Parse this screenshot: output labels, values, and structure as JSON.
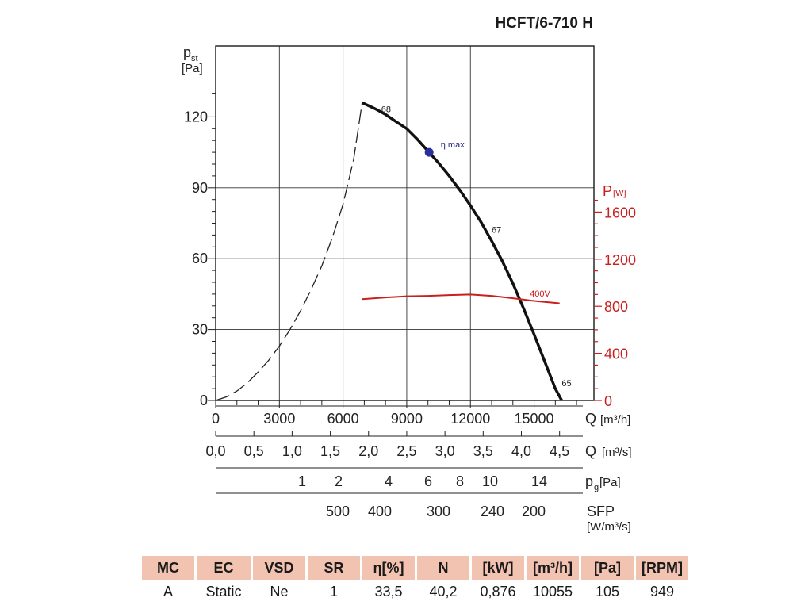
{
  "chart_data": {
    "type": "line",
    "title": "HCFT/6-710 H",
    "ylabel": "p",
    "ylabel_sub": "st",
    "ylabel_unit": "[Pa]",
    "xlabel": "Q",
    "xlabel_unit": "[m³/h]",
    "xlim": [
      0,
      17000
    ],
    "ylim": [
      0,
      135
    ],
    "x_ticks": [
      0,
      3000,
      6000,
      9000,
      12000,
      15000
    ],
    "y_ticks": [
      0,
      30,
      60,
      90,
      120
    ],
    "y2_label": "P",
    "y2_unit": "[W]",
    "y2_ticks": [
      0,
      400,
      800,
      1200,
      1600
    ],
    "series": [
      {
        "name": "pressure curve",
        "style": "solid",
        "x": [
          6900,
          7500,
          8000,
          8500,
          9000,
          9500,
          10000,
          10500,
          11000,
          11500,
          12000,
          12500,
          13000,
          13500,
          14000,
          14500,
          15000,
          15500,
          16000,
          16300
        ],
        "y": [
          126,
          123.5,
          121,
          118,
          115,
          110.5,
          105.5,
          100.5,
          95,
          89,
          82.5,
          75.5,
          67.5,
          59,
          49.5,
          39,
          28,
          16.5,
          5,
          0
        ]
      },
      {
        "name": "unstable region",
        "style": "dashed",
        "x": [
          0,
          500,
          1000,
          1500,
          2000,
          2500,
          3000,
          3500,
          4000,
          4500,
          5000,
          5500,
          6000,
          6500,
          6900
        ],
        "y": [
          0,
          1.5,
          4,
          7.5,
          12,
          17,
          23,
          30,
          38,
          47,
          57,
          69,
          83,
          102,
          126
        ]
      },
      {
        "name": "400V",
        "style": "red",
        "axis": "y2",
        "x": [
          6900,
          8000,
          9000,
          10000,
          11000,
          12000,
          13000,
          14000,
          15000,
          16200
        ],
        "y": [
          860,
          875,
          885,
          888,
          895,
          900,
          888,
          868,
          845,
          825
        ]
      }
    ],
    "annotations": [
      {
        "text": "68",
        "x": 7800,
        "y": 122
      },
      {
        "text": "67",
        "x": 13000,
        "y": 71
      },
      {
        "text": "65",
        "x": 16300,
        "y": 6
      },
      {
        "text": "η max",
        "x": 10600,
        "y": 107
      },
      {
        "text": "400V",
        "x": 14800,
        "y": 44
      }
    ],
    "eta_max_point": {
      "x": 10055,
      "y": 105
    },
    "secondary_scales": {
      "q_m3s": {
        "label": "Q",
        "unit": "[m³/s]",
        "ticks": [
          "0,0",
          "0,5",
          "1,0",
          "1,5",
          "2,0",
          "2,5",
          "3,0",
          "3,5",
          "4,0",
          "4,5"
        ],
        "values": [
          0,
          0.5,
          1,
          1.5,
          2,
          2.5,
          3,
          3.5,
          4,
          4.5
        ]
      },
      "pg": {
        "label": "p",
        "label_sub": "g",
        "unit": "[Pa]",
        "ticks": [
          "1",
          "2",
          "4",
          "6",
          "8",
          "10",
          "14"
        ],
        "values": [
          5500,
          7700,
          10600,
          12900,
          14800,
          16100,
          19600
        ]
      },
      "sfp": {
        "label": "SFP",
        "unit": "[W/m³/s]",
        "ticks": [
          "500",
          "400",
          "300",
          "240",
          "200"
        ],
        "values": [
          7500,
          10000,
          13200,
          16800,
          19400
        ]
      }
    }
  },
  "spec_table": {
    "headers": [
      "MC",
      "EC",
      "VSD",
      "SR",
      "η[%]",
      "N",
      "[kW]",
      "[m³/h]",
      "[Pa]",
      "[RPM]"
    ],
    "values": [
      "A",
      "Static",
      "Ne",
      "1",
      "33,5",
      "40,2",
      "0,876",
      "10055",
      "105",
      "949"
    ]
  },
  "colors": {
    "curve": "#111111",
    "power": "#c8201f",
    "eta_point": "#2a2f9a",
    "header_bg": "#f3c3b2"
  }
}
